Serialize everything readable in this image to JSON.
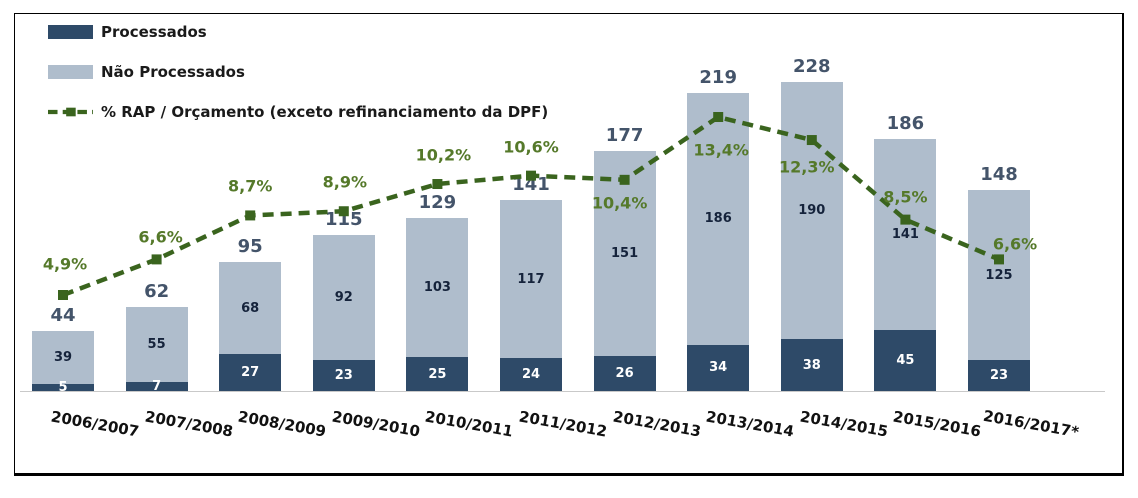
{
  "legend": {
    "processados": "Processados",
    "nao_processados": "Não Processados",
    "rap": "% RAP / Orçamento (exceto refinanciamento da DPF)"
  },
  "colors": {
    "processados": "#2E4A68",
    "nao_processados": "#AFBDCC",
    "line": "#3A641E",
    "pct_label": "#55792A",
    "total_label": "#44546A",
    "inner_light_label": "#15233B",
    "inner_dark_label": "#FFFFFF",
    "axis_line": "#C9C9C9"
  },
  "chart_data": {
    "type": "bar",
    "subtype": "stacked-with-line",
    "categories": [
      "2006/2007",
      "2007/2008",
      "2008/2009",
      "2009/2010",
      "2010/2011",
      "2011/2012",
      "2012/2013",
      "2013/2014",
      "2014/2015",
      "2015/2016",
      "2016/2017*"
    ],
    "series": [
      {
        "name": "Processados",
        "values": [
          5,
          7,
          27,
          23,
          25,
          24,
          26,
          34,
          38,
          45,
          23
        ]
      },
      {
        "name": "Não Processados",
        "values": [
          39,
          55,
          68,
          92,
          103,
          117,
          151,
          186,
          190,
          141,
          125
        ]
      },
      {
        "name": "% RAP / Orçamento (exceto refinanciamento da DPF)",
        "type": "line",
        "values": [
          4.9,
          6.6,
          8.7,
          8.9,
          10.2,
          10.6,
          10.4,
          13.4,
          12.3,
          8.5,
          6.6
        ]
      }
    ],
    "totals": [
      44,
      62,
      95,
      115,
      129,
      141,
      177,
      219,
      228,
      186,
      148
    ],
    "pct_labels": [
      "4,9%",
      "6,6%",
      "8,7%",
      "8,9%",
      "10,2%",
      "10,6%",
      "10,4%",
      "13,4%",
      "12,3%",
      "8,5%",
      "6,6%"
    ],
    "title": "",
    "xlabel": "",
    "ylabel": "",
    "grid": false,
    "legend_position": "top-left",
    "ylim_bars": [
      0,
      240
    ],
    "ylim_line_pct": [
      0,
      15
    ]
  }
}
